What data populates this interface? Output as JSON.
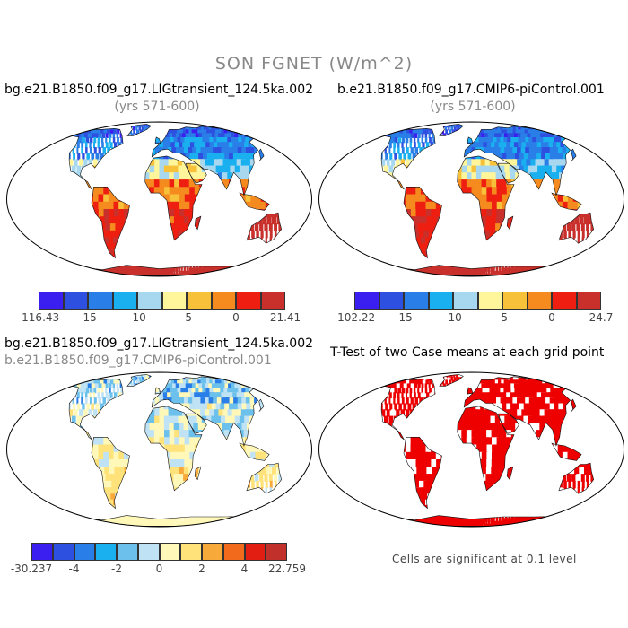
{
  "title": "SON FGNET (W/m^2)",
  "panels": {
    "p1": {
      "title": "bg.e21.B1850.f09_g17.LIGtransient_124.5ka.002",
      "subtitle": "(yrs 571-600)"
    },
    "p2": {
      "title": "b.e21.B1850.f09_g17.CMIP6-piControl.001",
      "subtitle": "(yrs 571-600)"
    },
    "p3": {
      "title": "bg.e21.B1850.f09_g17.LIGtransient_124.5ka.002",
      "subtitle": "b.e21.B1850.f09_g17.CMIP6-piControl.001"
    },
    "p4": {
      "title": "T-Test of two Case means at each grid point",
      "note": "Cells are significant at 0.1 level"
    }
  },
  "colorbars": {
    "cb1": {
      "colors": [
        "#3b1ff0",
        "#2e50e0",
        "#2a7ee8",
        "#1ab0f0",
        "#a8d8f0",
        "#fff59a",
        "#f7c23a",
        "#f58a1e",
        "#ee1f10",
        "#c9302c"
      ],
      "labels": [
        "-116.43",
        "-15",
        "-10",
        "-5",
        "0",
        "21.41"
      ]
    },
    "cb2": {
      "colors": [
        "#3b1ff0",
        "#2e50e0",
        "#2a7ee8",
        "#1ab0f0",
        "#a8d8f0",
        "#fff59a",
        "#f7c23a",
        "#f58a1e",
        "#ee1f10",
        "#c9302c"
      ],
      "labels": [
        "-102.22",
        "-15",
        "-10",
        "-5",
        "0",
        "24.7"
      ]
    },
    "cb3": {
      "colors": [
        "#3b1ff0",
        "#2e50e0",
        "#2a7ee8",
        "#1ab0f0",
        "#6cc0ec",
        "#bfe2f4",
        "#fff8b8",
        "#ffe27a",
        "#f7a93a",
        "#f26a1c",
        "#e21e12",
        "#c2302c"
      ],
      "labels": [
        "-30.237",
        "-4",
        "-2",
        "0",
        "2",
        "4",
        "22.759"
      ]
    }
  }
}
